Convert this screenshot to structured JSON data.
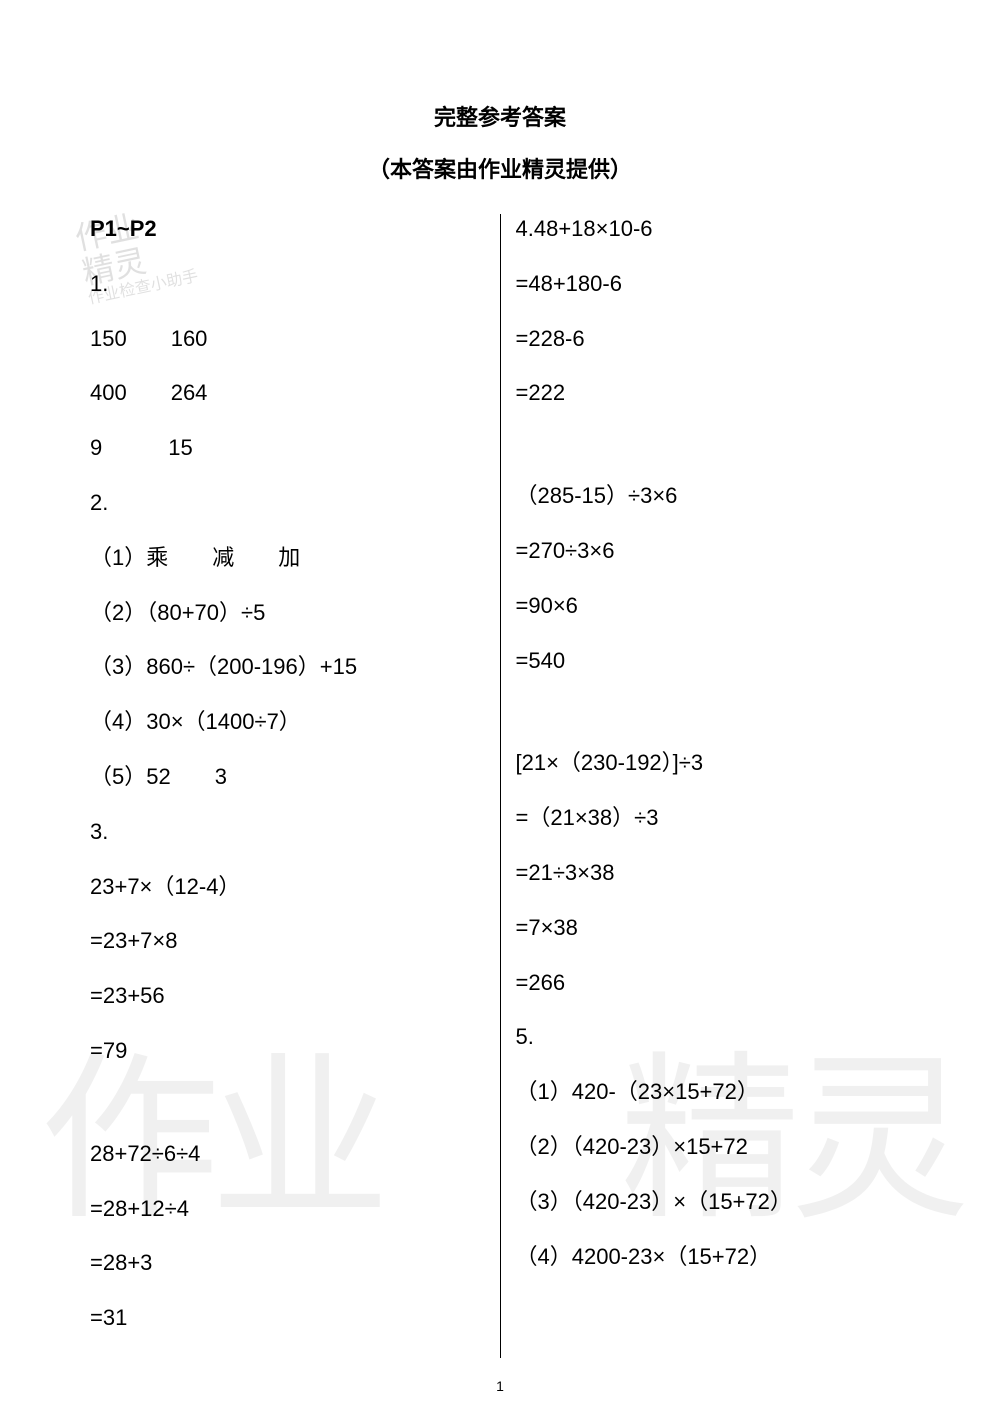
{
  "title": "完整参考答案",
  "subtitle": "（本答案由作业精灵提供）",
  "stamp_line1": "作业",
  "stamp_line2": "精灵",
  "stamp_line3": "作业检查小助手",
  "watermark_left": "作业",
  "watermark_right": "精灵",
  "page_number": "1",
  "left": {
    "l0": "P1~P2",
    "l1": "1.",
    "l2": "150　　160",
    "l3": "400　　264",
    "l4": "9　　　15",
    "l5": "2.",
    "l6": "（1）乘　　减　　加",
    "l7": "（2）（80+70）÷5",
    "l8": "（3）860÷（200-196）+15",
    "l9": "（4）30×（1400÷7）",
    "l10": "（5）52　　3",
    "l11": "3.",
    "l12": "23+7×（12-4）",
    "l13": "=23+7×8",
    "l14": "=23+56",
    "l15": "=79",
    "l16": "28+72÷6÷4",
    "l17": "=28+12÷4",
    "l18": "=28+3",
    "l19": "=31"
  },
  "right": {
    "r0": "4.48+18×10-6",
    "r1": "=48+180-6",
    "r2": "=228-6",
    "r3": "=222",
    "r4": "（285-15）÷3×6",
    "r5": "=270÷3×6",
    "r6": "=90×6",
    "r7": "=540",
    "r8": "[21×（230-192）]÷3",
    "r9": "=（21×38）÷3",
    "r10": "=21÷3×38",
    "r11": "=7×38",
    "r12": "=266",
    "r13": "5.",
    "r14": "（1）420-（23×15+72）",
    "r15": "（2）（420-23）×15+72",
    "r16": "（3）（420-23）×（15+72）",
    "r17": "（4）4200-23×（15+72）"
  }
}
